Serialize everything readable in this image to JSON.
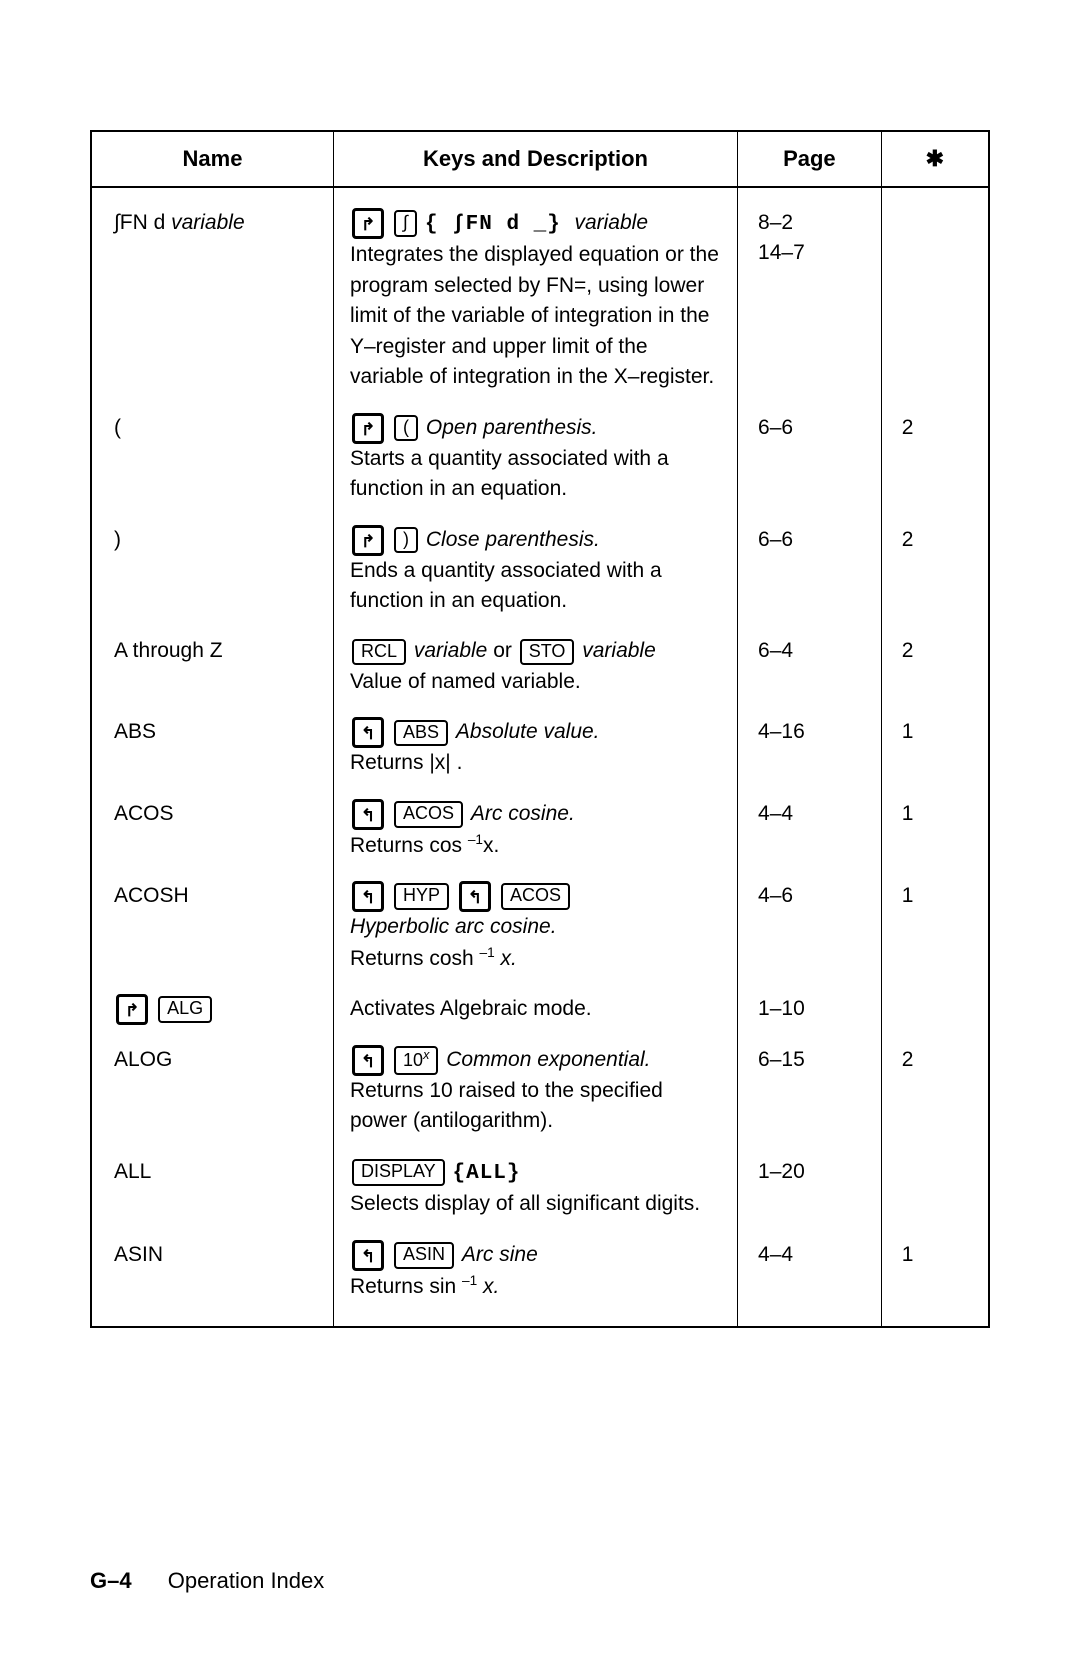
{
  "headers": {
    "name": "Name",
    "desc": "Keys and Description",
    "page": "Page",
    "star": "✱"
  },
  "rows": {
    "fn": {
      "name_pre": "∫FN d ",
      "name_var": "variable",
      "seq_text": "{  ∫FN d _} ",
      "seq_var": "variable",
      "int_key": "∫",
      "desc": "Integrates the displayed equation or the program selected by FN=, using lower limit of the variable of integration in the Y–register and upper limit of the variable of integration in the X–register.",
      "page1": "8–2",
      "page2": "14–7"
    },
    "openp": {
      "name": "(",
      "key": "(",
      "title": "Open parenthesis.",
      "desc": "Starts a quantity associated with a function in an equation.",
      "page": "6–6",
      "star": "2"
    },
    "closep": {
      "name": ")",
      "key": ")",
      "title": "Close parenthesis.",
      "desc": "Ends a quantity associated with a function in an equation.",
      "page": "6–6",
      "star": "2"
    },
    "az": {
      "name": "A through Z",
      "rcl": "RCL",
      "sto": "STO",
      "var": "variable",
      "or": " or ",
      "desc": "Value of named variable.",
      "page": "6–4",
      "star": "2"
    },
    "abs": {
      "name": "ABS",
      "key": "ABS",
      "title": "Absolute value.",
      "ret": "Returns ",
      "x": "|x|",
      "dot": " .",
      "page": "4–16",
      "star": "1"
    },
    "acos": {
      "name": "ACOS",
      "key": "ACOS",
      "title": "Arc cosine.",
      "ret": "Returns cos ",
      "exp": "–1",
      "x": "x.",
      "page": "4–4",
      "star": "1"
    },
    "acosh": {
      "name": "ACOSH",
      "hyp": "HYP",
      "acos": "ACOS",
      "title": "Hyperbolic arc cosine.",
      "ret": "Returns cosh ",
      "exp": "–1",
      "x": " x.",
      "page": "4–6",
      "star": "1"
    },
    "alg": {
      "key": "ALG",
      "desc": "Activates Algebraic mode.",
      "page": "1–10"
    },
    "alog": {
      "name": "ALOG",
      "tenx": "10",
      "title": "Common exponential.",
      "desc": "Returns 10 raised to the specified power (antilogarithm).",
      "page": "6–15",
      "star": "2"
    },
    "all": {
      "name": "ALL",
      "disp": "DISPLAY",
      "menu": "{ALL}",
      "desc": "Selects display of all significant digits.",
      "page": "1–20"
    },
    "asin": {
      "name": "ASIN",
      "key": "ASIN",
      "title": "Arc sine",
      "ret": "Returns sin ",
      "exp": "–1",
      "x": " x.",
      "page": "4–4",
      "star": "1"
    }
  },
  "footer": {
    "page": "G–4",
    "title": "Operation Index"
  }
}
